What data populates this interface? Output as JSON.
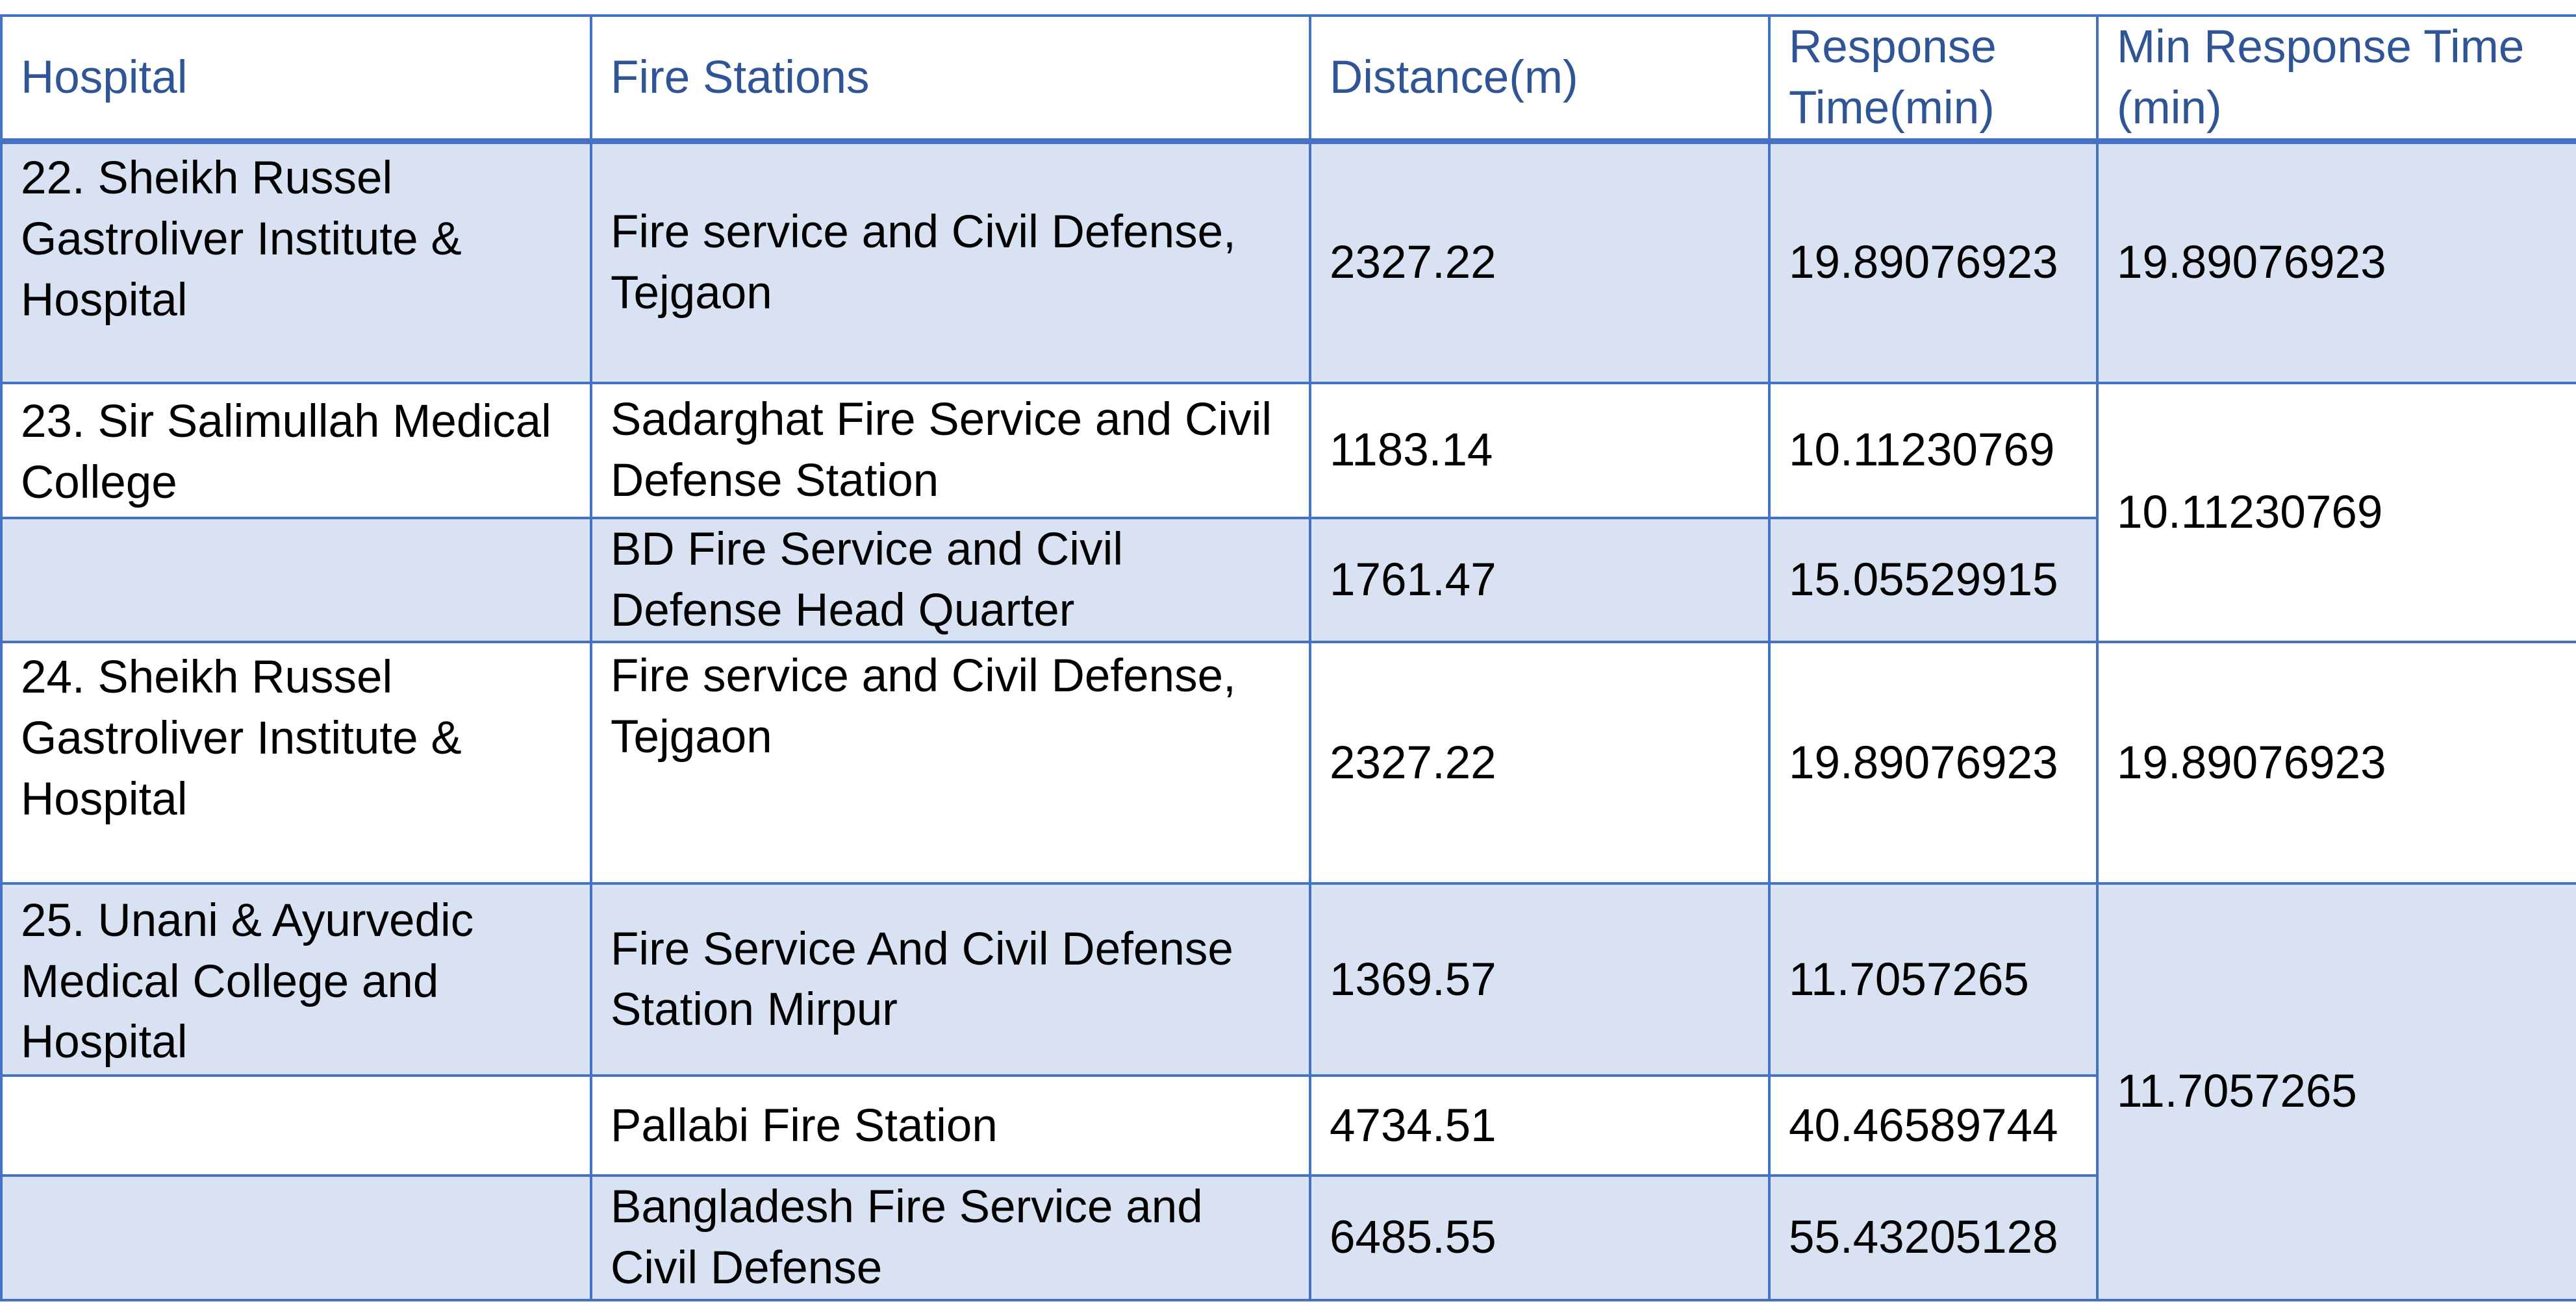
{
  "table": {
    "headers": [
      "Hospital",
      "Fire Stations",
      "Distance(m)",
      "Response Time(min)",
      "Min Response Time (min)"
    ],
    "groups": [
      {
        "hospital": "22. Sheikh Russel Gastroliver Institute & Hospital",
        "min_response_time": "19.89076923",
        "rows": [
          {
            "fire_station": "Fire service and Civil Defense, Tejgaon",
            "distance": "2327.22",
            "response_time": "19.89076923"
          }
        ]
      },
      {
        "hospital": "23. Sir Salimullah Medical College",
        "min_response_time": "10.11230769",
        "rows": [
          {
            "fire_station": "Sadarghat Fire Service and Civil Defense Station",
            "distance": "1183.14",
            "response_time": "10.11230769"
          },
          {
            "fire_station": "BD Fire Service and Civil Defense Head Quarter",
            "distance": "1761.47",
            "response_time": "15.05529915"
          }
        ]
      },
      {
        "hospital": "24. Sheikh Russel Gastroliver Institute & Hospital",
        "min_response_time": "19.89076923",
        "rows": [
          {
            "fire_station": "Fire service and Civil Defense, Tejgaon",
            "distance": "2327.22",
            "response_time": "19.89076923"
          }
        ]
      },
      {
        "hospital": "25. Unani & Ayurvedic Medical College and Hospital",
        "min_response_time": "11.7057265",
        "rows": [
          {
            "fire_station": "Fire Service And Civil Defense Station Mirpur",
            "distance": "1369.57",
            "response_time": "11.7057265"
          },
          {
            "fire_station": "Pallabi Fire Station",
            "distance": "4734.51",
            "response_time": "40.46589744"
          },
          {
            "fire_station": "Bangladesh Fire Service and Civil Defense",
            "distance": "6485.55",
            "response_time": "55.43205128"
          }
        ]
      }
    ]
  },
  "colors": {
    "border": "#4472C4",
    "header_text": "#2F5597",
    "band_fill": "#D9E2F3",
    "plain_fill": "#FFFFFF"
  }
}
